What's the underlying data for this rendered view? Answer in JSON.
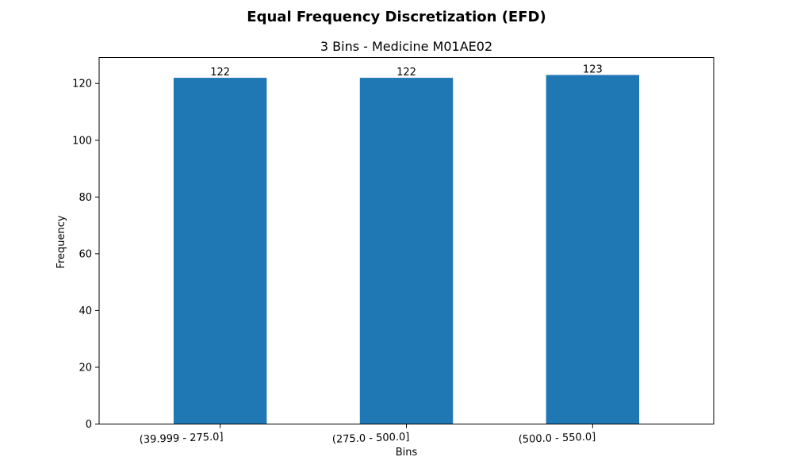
{
  "suptitle": "Equal Frequency Discretization (EFD)",
  "chart_data": {
    "type": "bar",
    "title": "3 Bins - Medicine M01AE02",
    "xlabel": "Bins",
    "ylabel": "Frequency",
    "categories": [
      "(39.999 - 275.0]",
      "(275.0 - 500.0]",
      "(500.0 - 550.0]"
    ],
    "values": [
      122,
      122,
      123
    ],
    "data_labels": [
      "122",
      "122",
      "123"
    ],
    "ylim": [
      0,
      129.15
    ],
    "yticks": [
      0,
      20,
      40,
      60,
      80,
      100,
      120
    ],
    "bar_color": "#1f77b4",
    "grid": false,
    "legend": "none"
  }
}
